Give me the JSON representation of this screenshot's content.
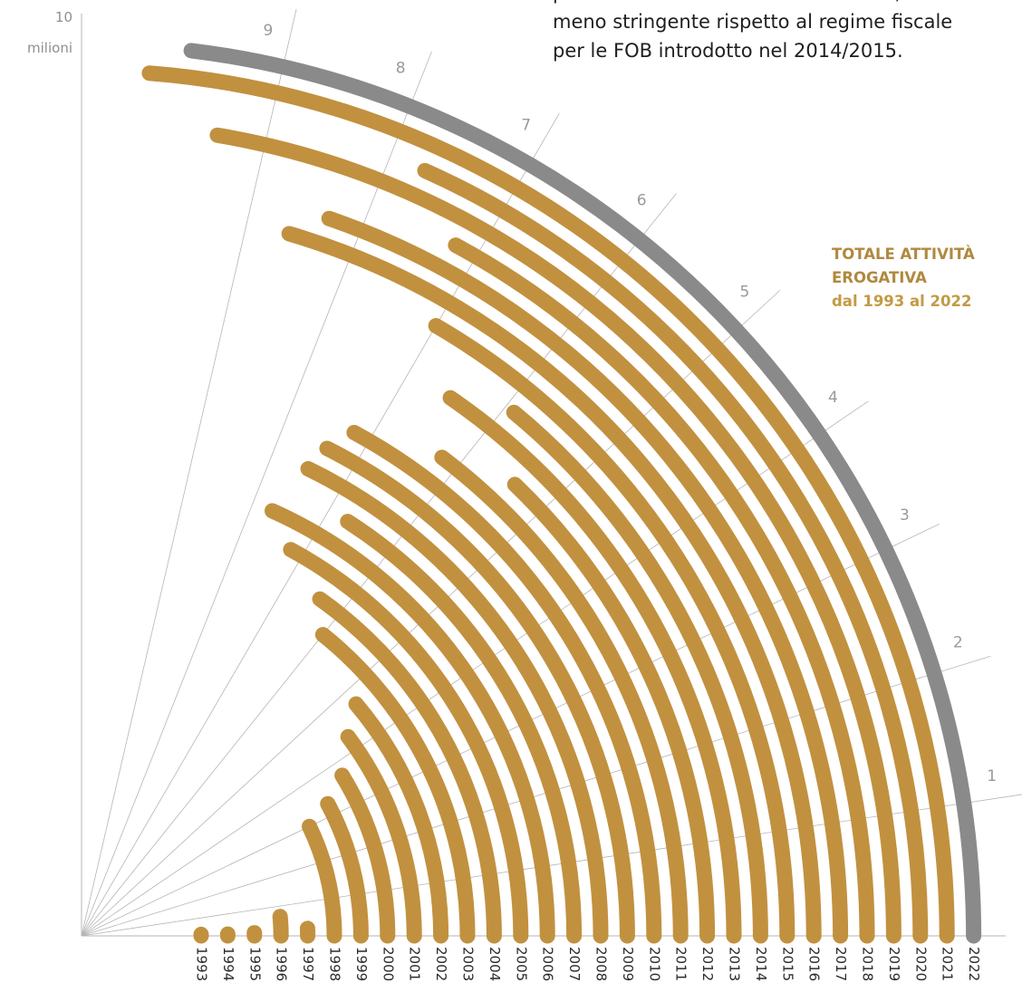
{
  "note": {
    "lines": [
      "previsti dal Codice del Terzo Settore, sebbene",
      "meno stringente rispetto al regime fiscale",
      "per le FOB introdotto nel 2014/2015."
    ]
  },
  "title": {
    "line1": "TOTALE ATTIVITÀ",
    "line2": "EROGATIVA",
    "line3": "dal 1993 al 2022"
  },
  "axis": {
    "max_label": "10",
    "unit_label": "milioni"
  },
  "colors": {
    "bar": "#c1913f",
    "highlight": "#8a8a8a",
    "grid": "#b5b5b5",
    "tick_text": "#9a9a9a"
  },
  "chart_data": {
    "type": "radial-bar",
    "title": "TOTALE ATTIVITÀ EROGATIVA dal 1993 al 2022",
    "unit": "milioni",
    "scale_max": 10,
    "radial_ticks": [
      "1",
      "2",
      "3",
      "4",
      "5",
      "6",
      "7",
      "8",
      "9"
    ],
    "categories": [
      "1993",
      "1994",
      "1995",
      "1996",
      "1997",
      "1998",
      "1999",
      "2000",
      "2001",
      "2002",
      "2003",
      "2004",
      "2005",
      "2006",
      "2007",
      "2008",
      "2009",
      "2010",
      "2011",
      "2012",
      "2013",
      "2014",
      "2015",
      "2016",
      "2017",
      "2018",
      "2019",
      "2020",
      "2021",
      "2022"
    ],
    "values": [
      0.08,
      0.08,
      0.12,
      0.65,
      0.22,
      3.0,
      3.3,
      3.7,
      4.3,
      4.7,
      6.0,
      6.4,
      7.2,
      7.7,
      6.7,
      7.5,
      7.4,
      7.2,
      6.2,
      5.4,
      6.5,
      5.9,
      7.0,
      8.6,
      8.3,
      7.2,
      9.4,
      7.7,
      10.0,
      9.7
    ],
    "highlight": "2022"
  }
}
